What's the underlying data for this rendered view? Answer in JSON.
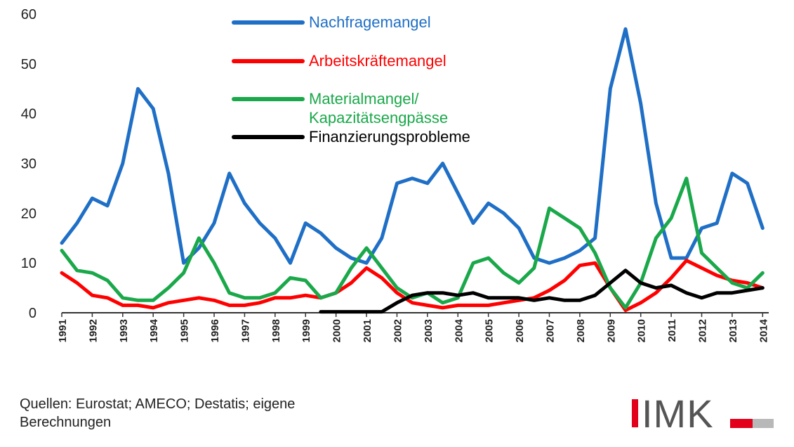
{
  "chart_data": {
    "type": "line",
    "x": [
      1991.0,
      1991.5,
      1992.0,
      1992.5,
      1993.0,
      1993.5,
      1994.0,
      1994.5,
      1995.0,
      1995.5,
      1996.0,
      1996.5,
      1997.0,
      1997.5,
      1998.0,
      1998.5,
      1999.0,
      1999.5,
      2000.0,
      2000.5,
      2001.0,
      2001.5,
      2002.0,
      2002.5,
      2003.0,
      2003.5,
      2004.0,
      2004.5,
      2005.0,
      2005.5,
      2006.0,
      2006.5,
      2007.0,
      2007.5,
      2008.0,
      2008.5,
      2009.0,
      2009.5,
      2010.0,
      2010.5,
      2011.0,
      2011.5,
      2012.0,
      2012.5,
      2013.0,
      2013.5,
      2014.0
    ],
    "series": [
      {
        "name": "Nachfragemangel",
        "color": "#1f6fc6",
        "values": [
          14,
          18,
          23,
          21.5,
          30,
          45,
          41,
          28,
          10,
          13,
          18,
          28,
          22,
          18,
          15,
          10,
          18,
          16,
          13,
          11,
          10,
          15,
          26,
          27,
          26,
          30,
          24,
          18,
          22,
          20,
          17,
          11,
          10,
          11,
          12.5,
          15,
          45,
          57,
          42,
          22,
          11,
          11,
          17,
          18,
          28,
          26,
          17
        ]
      },
      {
        "name": "Arbeitskräftemangel",
        "color": "#ff0000",
        "values": [
          8,
          6,
          3.5,
          3,
          1.5,
          1.5,
          1,
          2,
          2.5,
          3,
          2.5,
          1.5,
          1.5,
          2,
          3,
          3,
          3.5,
          3,
          4,
          6,
          9,
          7,
          4,
          2,
          1.5,
          1,
          1.5,
          1.5,
          1.5,
          2,
          2.5,
          3,
          4.5,
          6.5,
          9.5,
          10,
          5,
          0.5,
          2,
          4,
          7,
          10.5,
          9,
          7.5,
          6.5,
          6,
          5
        ]
      },
      {
        "name": "Materialmangel/\nKapazitätsengpässe",
        "color": "#1aa84a",
        "values": [
          12.5,
          8.5,
          8,
          6.5,
          3,
          2.5,
          2.5,
          5,
          8,
          15,
          10,
          4,
          3,
          3,
          4,
          7,
          6.5,
          3,
          4,
          9,
          13,
          9,
          5,
          3,
          4,
          2,
          3,
          10,
          11,
          8,
          6,
          9,
          21,
          19,
          17,
          12,
          5,
          1,
          6,
          15,
          19,
          27,
          12,
          9,
          6,
          5,
          8
        ]
      },
      {
        "name": "Finanzierungsprobleme",
        "color": "#000000",
        "values": [
          null,
          null,
          null,
          null,
          null,
          null,
          null,
          null,
          null,
          null,
          null,
          null,
          null,
          null,
          null,
          null,
          null,
          0.2,
          0.2,
          0.2,
          0.2,
          0.2,
          2,
          3.5,
          4,
          4,
          3.5,
          4,
          3,
          3,
          3,
          2.5,
          3,
          2.5,
          2.5,
          3.5,
          6,
          8.5,
          6,
          5,
          5.5,
          4,
          3,
          4,
          4,
          4.5,
          5
        ]
      }
    ],
    "xlim": [
      1991,
      2014.2
    ],
    "xticks": [
      1991,
      1992,
      1993,
      1994,
      1995,
      1996,
      1997,
      1998,
      1999,
      2000,
      2001,
      2002,
      2003,
      2004,
      2005,
      2006,
      2007,
      2008,
      2009,
      2010,
      2011,
      2012,
      2013,
      2014
    ],
    "ylim": [
      0,
      60
    ],
    "yticks": [
      0,
      10,
      20,
      30,
      40,
      50,
      60
    ],
    "grid": false,
    "source": "Quellen: Eurostat; AMECO; Destatis; eigene\nBerechnungen",
    "logo": "IMK"
  }
}
